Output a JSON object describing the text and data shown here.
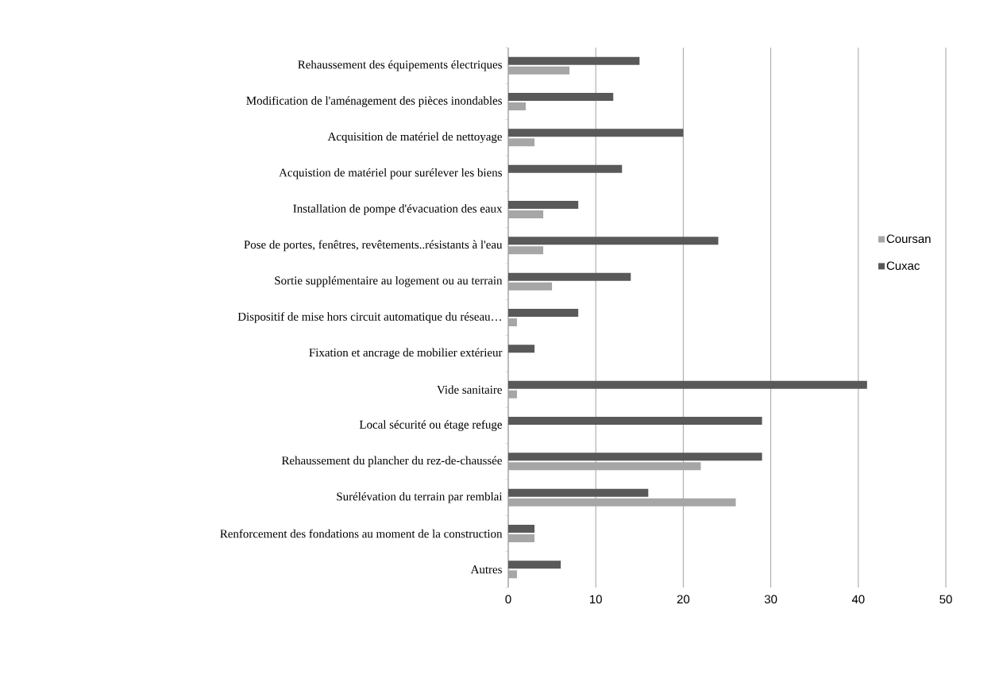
{
  "chart_data": {
    "type": "bar",
    "orientation": "horizontal",
    "categories": [
      "Rehaussement des équipements électriques",
      "Modification de l'aménagement des pièces inondables",
      "Acquisition de matériel de nettoyage",
      "Acquistion de matériel pour surélever les biens",
      "Installation de pompe d'évacuation des eaux",
      "Pose de portes, fenêtres, revêtements..résistants à l'eau",
      "Sortie supplémentaire au logement ou au terrain",
      "Dispositif de mise hors circuit automatique du réseau…",
      "Fixation et ancrage de mobilier extérieur",
      "Vide sanitaire",
      "Local sécurité ou étage refuge",
      "Rehaussement du plancher du rez-de-chaussée",
      "Surélévation du terrain par remblai",
      "Renforcement des fondations au moment de la construction",
      "Autres"
    ],
    "series": [
      {
        "name": "Coursan",
        "color": "#a6a6a6",
        "values": [
          7,
          2,
          3,
          0,
          4,
          4,
          5,
          1,
          0,
          1,
          0,
          22,
          26,
          3,
          1
        ]
      },
      {
        "name": "Cuxac",
        "color": "#595959",
        "values": [
          15,
          12,
          20,
          13,
          8,
          24,
          14,
          8,
          3,
          41,
          29,
          29,
          16,
          3,
          6
        ]
      }
    ],
    "xlim": [
      0,
      50
    ],
    "xticks": [
      0,
      10,
      20,
      30,
      40,
      50
    ],
    "grid": "x",
    "legend": "right"
  }
}
